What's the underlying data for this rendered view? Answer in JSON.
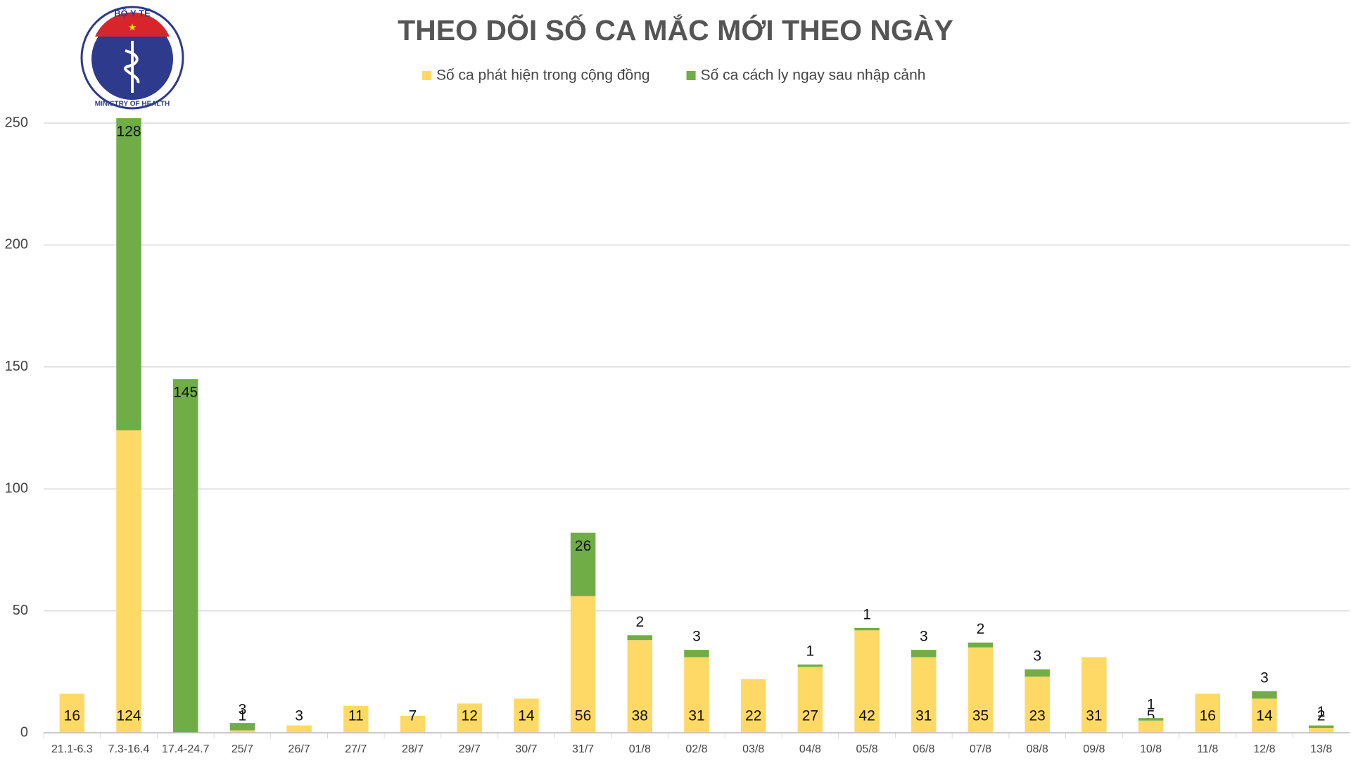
{
  "logo": {
    "top_text": "BỘ Y TẾ",
    "bottom_text": "MINISTRY OF HEALTH"
  },
  "chart_data": {
    "type": "stacked-bar",
    "title": "THEO DÕI SỐ CA MẮC MỚI THEO NGÀY",
    "categories": [
      "21.1-6.3",
      "7.3-16.4",
      "17.4-24.7",
      "25/7",
      "26/7",
      "27/7",
      "28/7",
      "29/7",
      "30/7",
      "31/7",
      "01/8",
      "02/8",
      "03/8",
      "04/8",
      "05/8",
      "06/8",
      "07/8",
      "08/8",
      "09/8",
      "10/8",
      "11/8",
      "12/8",
      "13/8"
    ],
    "series": [
      {
        "name": "Số ca phát hiện trong cộng đồng",
        "color": "#ffd966",
        "values": [
          16,
          124,
          null,
          1,
          3,
          11,
          7,
          12,
          14,
          56,
          38,
          31,
          22,
          27,
          42,
          31,
          35,
          23,
          31,
          5,
          16,
          14,
          2
        ]
      },
      {
        "name": "Số ca cách ly ngay sau nhập cảnh",
        "color": "#70ad47",
        "values": [
          null,
          128,
          145,
          3,
          null,
          null,
          null,
          null,
          null,
          26,
          2,
          3,
          null,
          1,
          1,
          3,
          2,
          3,
          null,
          1,
          null,
          3,
          1
        ]
      }
    ],
    "ylim": [
      0,
      250
    ],
    "yticks": [
      0,
      50,
      100,
      150,
      200,
      250
    ],
    "grid": true,
    "legend": "top"
  }
}
